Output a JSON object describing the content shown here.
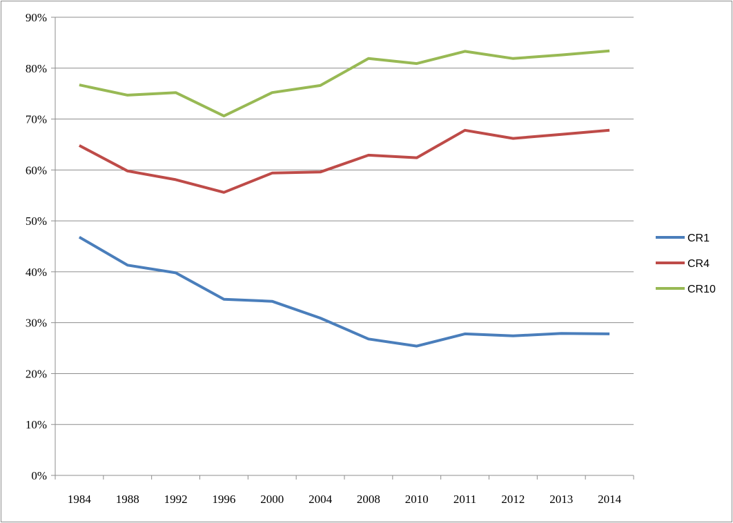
{
  "chart_data": {
    "type": "line",
    "title": "",
    "xlabel": "",
    "ylabel": "",
    "categories": [
      "1984",
      "1988",
      "1992",
      "1996",
      "2000",
      "2004",
      "2008",
      "2010",
      "2011",
      "2012",
      "2013",
      "2014"
    ],
    "ylim": [
      0,
      90
    ],
    "yticks": [
      "0%",
      "10%",
      "20%",
      "30%",
      "40%",
      "50%",
      "60%",
      "70%",
      "80%",
      "90%"
    ],
    "grid": true,
    "legend": "right",
    "series": [
      {
        "name": "CR1",
        "color": "#4a7ebb",
        "values": [
          46.8,
          41.3,
          39.8,
          34.6,
          34.2,
          30.9,
          26.8,
          25.4,
          27.8,
          27.4,
          27.9,
          27.8
        ]
      },
      {
        "name": "CR4",
        "color": "#be4b48",
        "values": [
          64.8,
          59.8,
          58.1,
          55.6,
          59.4,
          59.6,
          62.9,
          62.4,
          67.8,
          66.2,
          67.0,
          67.8
        ]
      },
      {
        "name": "CR10",
        "color": "#98b954",
        "values": [
          76.7,
          74.7,
          75.2,
          70.6,
          75.2,
          76.6,
          81.9,
          80.9,
          83.3,
          81.9,
          82.6,
          83.4
        ]
      }
    ]
  }
}
